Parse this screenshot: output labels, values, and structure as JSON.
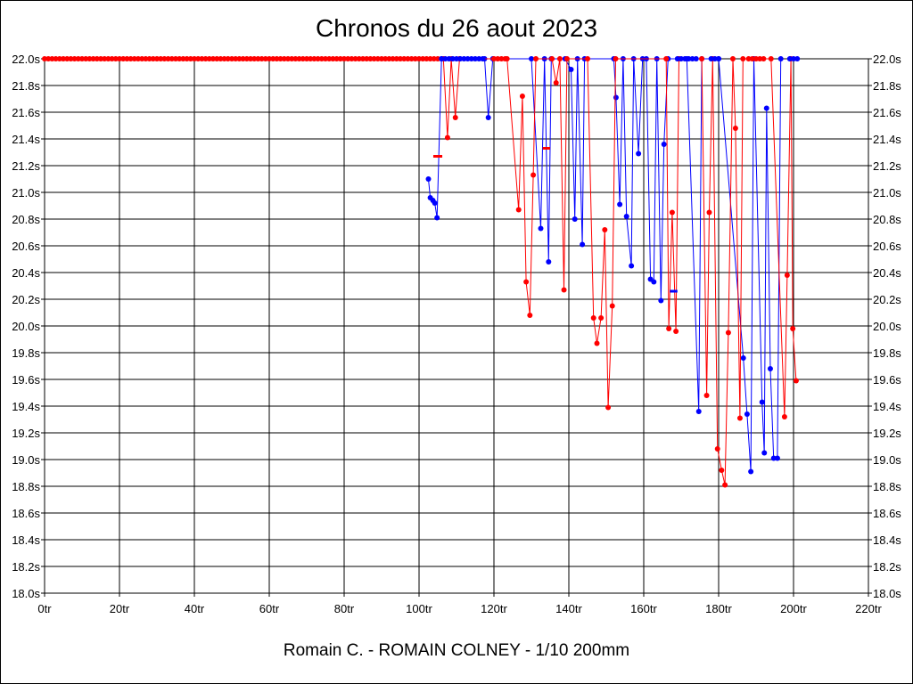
{
  "chart_data": {
    "type": "line",
    "title": "Chronos du 26 aout 2023",
    "footer": "Romain C. - ROMAIN COLNEY - 1/10 200mm",
    "xlim": [
      0,
      220
    ],
    "ylim": [
      18.0,
      22.0
    ],
    "x_ticks": [
      0,
      20,
      40,
      60,
      80,
      100,
      120,
      140,
      160,
      180,
      200,
      220
    ],
    "x_tick_labels": [
      "0tr",
      "20tr",
      "40tr",
      "60tr",
      "80tr",
      "100tr",
      "120tr",
      "140tr",
      "160tr",
      "180tr",
      "200tr",
      "220tr"
    ],
    "y_ticks": [
      18.0,
      18.2,
      18.4,
      18.6,
      18.8,
      19.0,
      19.2,
      19.4,
      19.6,
      19.8,
      20.0,
      20.2,
      20.4,
      20.6,
      20.8,
      21.0,
      21.2,
      21.4,
      21.6,
      21.8,
      22.0
    ],
    "y_tick_labels": [
      "18.0s",
      "18.2s",
      "18.4s",
      "18.6s",
      "18.8s",
      "19.0s",
      "19.2s",
      "19.4s",
      "19.6s",
      "19.8s",
      "20.0s",
      "20.2s",
      "20.4s",
      "20.6s",
      "20.8s",
      "21.0s",
      "21.2s",
      "21.4s",
      "21.6s",
      "21.8s",
      "22.0s"
    ],
    "grid": true,
    "colors": {
      "red": "#ff0000",
      "blue": "#0000ff"
    },
    "series": [
      {
        "color": "#0000ff",
        "points": [
          [
            102.5,
            21.1
          ],
          [
            103.0,
            20.96
          ],
          [
            103.7,
            20.94
          ],
          [
            104.2,
            20.92
          ],
          [
            104.8,
            20.81
          ],
          [
            106,
            22.0
          ],
          [
            117.5,
            22.0
          ],
          [
            118.5,
            21.56
          ],
          [
            119.7,
            22.0
          ],
          [
            130,
            22.0
          ],
          [
            132.5,
            20.73
          ],
          [
            133.5,
            22.0
          ],
          [
            134.6,
            20.48
          ],
          [
            135.3,
            22.0
          ],
          [
            139,
            22.0
          ],
          [
            140.6,
            21.92
          ],
          [
            141.6,
            20.8
          ],
          [
            142.3,
            22.0
          ],
          [
            143.6,
            20.61
          ],
          [
            144.2,
            22.0
          ],
          [
            152,
            22.0
          ],
          [
            152.6,
            21.71
          ],
          [
            153.6,
            20.91
          ],
          [
            154.5,
            22.0
          ],
          [
            155.4,
            20.82
          ],
          [
            156.7,
            20.45
          ],
          [
            157.3,
            22.0
          ],
          [
            158.6,
            21.29
          ],
          [
            159.7,
            22.0
          ],
          [
            160.7,
            22.0
          ],
          [
            161.8,
            20.35
          ],
          [
            162.7,
            20.33
          ],
          [
            163.5,
            22.0
          ],
          [
            164.6,
            20.19
          ],
          [
            165.4,
            21.36
          ],
          [
            166.5,
            22.0
          ],
          [
            171.5,
            22.0
          ],
          [
            174.7,
            19.36
          ],
          [
            175.5,
            22.0
          ],
          [
            180,
            22.0
          ],
          [
            186.6,
            19.76
          ],
          [
            187.6,
            19.34
          ],
          [
            188.6,
            18.91
          ],
          [
            189.4,
            22.0
          ],
          [
            191.6,
            19.43
          ],
          [
            192.2,
            19.05
          ],
          [
            192.8,
            21.63
          ],
          [
            193.8,
            19.68
          ],
          [
            194.7,
            19.01
          ],
          [
            195.7,
            19.01
          ],
          [
            196.6,
            22.0
          ]
        ]
      },
      {
        "color": "#ff0000",
        "points": [
          [
            106.5,
            22.0
          ],
          [
            107.6,
            21.41
          ],
          [
            108.6,
            22.0
          ],
          [
            109.7,
            21.56
          ],
          [
            110.8,
            22.0
          ],
          [
            123.5,
            22.0
          ],
          [
            126.6,
            20.87
          ],
          [
            127.6,
            21.72
          ],
          [
            128.6,
            20.33
          ],
          [
            129.6,
            20.08
          ],
          [
            130.5,
            21.13
          ],
          [
            131.2,
            22.0
          ],
          [
            135.5,
            22.0
          ],
          [
            136.6,
            21.82
          ],
          [
            137.6,
            22.0
          ],
          [
            138.7,
            20.27
          ],
          [
            139.5,
            22.0
          ],
          [
            145,
            22.0
          ],
          [
            146.6,
            20.06
          ],
          [
            147.5,
            19.87
          ],
          [
            148.6,
            20.06
          ],
          [
            149.6,
            20.72
          ],
          [
            150.5,
            19.39
          ],
          [
            151.6,
            20.15
          ],
          [
            152.5,
            22.0
          ],
          [
            166,
            22.0
          ],
          [
            166.7,
            19.98
          ],
          [
            167.6,
            20.85
          ],
          [
            168.6,
            19.96
          ],
          [
            169.4,
            22.0
          ],
          [
            175.5,
            22.0
          ],
          [
            176.8,
            19.48
          ],
          [
            177.5,
            20.85
          ],
          [
            178.4,
            22.0
          ],
          [
            179.7,
            19.08
          ],
          [
            180.8,
            18.92
          ],
          [
            181.7,
            18.81
          ],
          [
            182.6,
            19.95
          ],
          [
            183.8,
            22.0
          ],
          [
            184.5,
            21.48
          ],
          [
            185.7,
            19.31
          ],
          [
            186.5,
            22.0
          ],
          [
            194,
            22.0
          ],
          [
            197.6,
            19.32
          ],
          [
            198.3,
            20.38
          ],
          [
            199.3,
            22.0
          ],
          [
            199.8,
            19.98
          ],
          [
            200.7,
            19.59
          ]
        ]
      }
    ],
    "flat_markers": [
      {
        "color": "#ff0000",
        "x": [
          0,
          1,
          2,
          3,
          4,
          5,
          6,
          7,
          8,
          9,
          10,
          11,
          12,
          13,
          14,
          15,
          16,
          17,
          18,
          19,
          20,
          21,
          22,
          23,
          24,
          25,
          26,
          27,
          28,
          29,
          30,
          31,
          32,
          33,
          34,
          35,
          36,
          37,
          38,
          39,
          40,
          41,
          42,
          43,
          44,
          45,
          46,
          47,
          48,
          49,
          50,
          51,
          52,
          53,
          54,
          55,
          56,
          57,
          58,
          59,
          60,
          61,
          62,
          63,
          64,
          65,
          66,
          67,
          68,
          69,
          70,
          71,
          72,
          73,
          74,
          75,
          76,
          77,
          78,
          79,
          80,
          81,
          82,
          83,
          84,
          85,
          86,
          87,
          88,
          89,
          90,
          91,
          92,
          93,
          94,
          95,
          96,
          97,
          98,
          99,
          100,
          101,
          102,
          103,
          104,
          105
        ],
        "y": 22.0
      },
      {
        "color": "#0000ff",
        "x": [
          106,
          107,
          108,
          109,
          110,
          111,
          112,
          113,
          114,
          115,
          116,
          117
        ],
        "y": 22.0
      },
      {
        "color": "#ff0000",
        "x": [
          120,
          121,
          122,
          123
        ],
        "y": 22.0
      },
      {
        "color": "#0000ff",
        "x": [
          169,
          170,
          171,
          172,
          173,
          174
        ],
        "y": 22.0
      },
      {
        "color": "#0000ff",
        "x": [
          178,
          179,
          180
        ],
        "y": 22.0
      },
      {
        "color": "#ff0000",
        "x": [
          188,
          189,
          190,
          191,
          192
        ],
        "y": 22.0
      },
      {
        "color": "#0000ff",
        "x": [
          199,
          200,
          201
        ],
        "y": 22.0
      }
    ],
    "dash_markers": [
      {
        "color": "#ff0000",
        "x": [
          103.8,
          106.2
        ],
        "y": 21.27
      },
      {
        "color": "#ff0000",
        "x": [
          133.0,
          135.0
        ],
        "y": 21.33
      },
      {
        "color": "#0000ff",
        "x": [
          167.0,
          169.0
        ],
        "y": 20.26
      }
    ]
  }
}
